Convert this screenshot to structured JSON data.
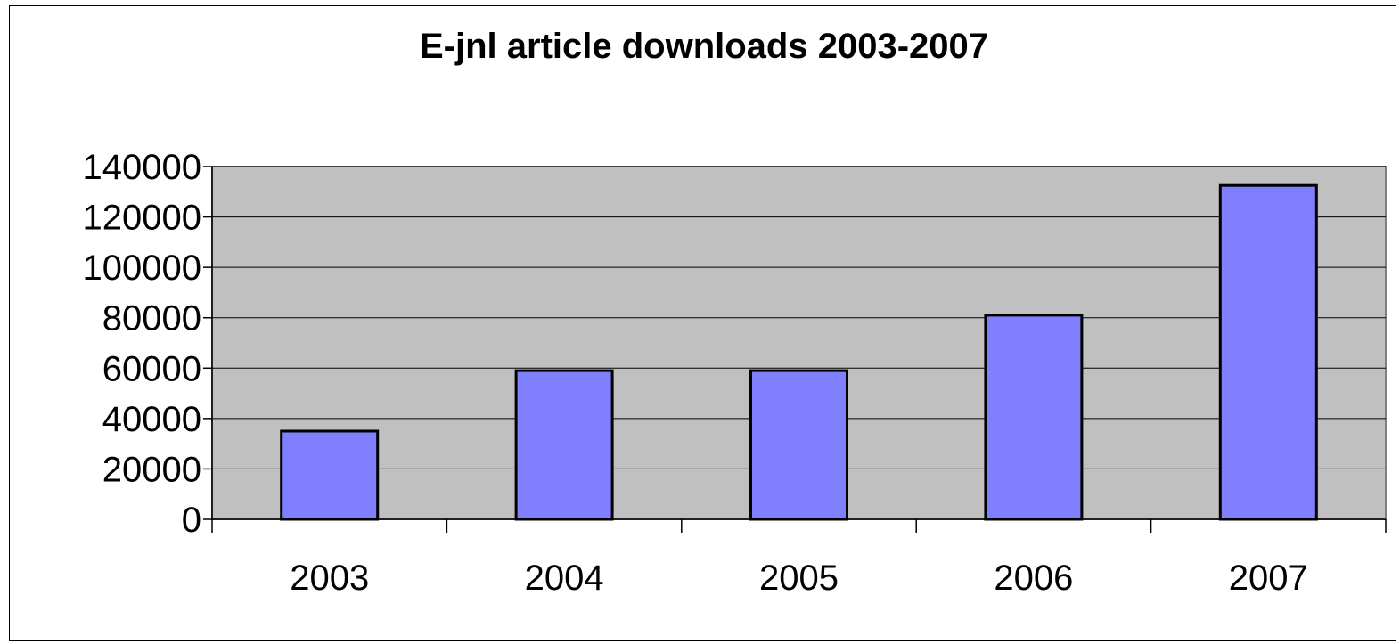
{
  "chart_data": {
    "type": "bar",
    "title": "E-jnl article downloads 2003-2007",
    "xlabel": "",
    "ylabel": "",
    "categories": [
      "2003",
      "2004",
      "2005",
      "2006",
      "2007"
    ],
    "values": [
      35000,
      59000,
      59000,
      81000,
      132500
    ],
    "ylim": [
      0,
      140000
    ],
    "yticks": [
      "0",
      "20000",
      "40000",
      "60000",
      "80000",
      "100000",
      "120000",
      "140000"
    ],
    "grid": true,
    "legend": "none",
    "colors": {
      "bar_fill": "#8080ff",
      "bar_stroke": "#000000",
      "plot_background": "#c0c0c0",
      "gridline": "#000000"
    }
  }
}
